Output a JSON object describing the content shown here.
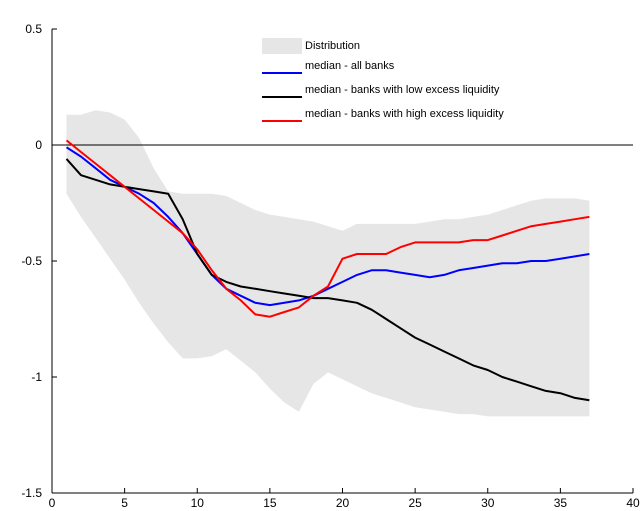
{
  "chart_data": {
    "type": "line",
    "title": "",
    "xlabel": "",
    "ylabel": "",
    "xlim": [
      0,
      40
    ],
    "ylim": [
      -1.5,
      0.5
    ],
    "xticks": [
      0,
      5,
      10,
      15,
      20,
      25,
      30,
      35,
      40
    ],
    "yticks": [
      0.5,
      0,
      -0.5,
      -1,
      -1.5
    ],
    "xtick_labels": [
      "0",
      "5",
      "10",
      "15",
      "20",
      "25",
      "30",
      "35",
      "40"
    ],
    "ytick_labels": [
      "0.5",
      "0",
      "-0.5",
      "-1",
      "-1.5"
    ],
    "grid": false,
    "legend_position": "top-right",
    "reference_line": 0,
    "distribution_band": {
      "name": "Distribution",
      "color": "#e6e6e6",
      "x": [
        1,
        2,
        3,
        4,
        5,
        6,
        7,
        8,
        9,
        10,
        11,
        12,
        13,
        14,
        15,
        16,
        17,
        18,
        19,
        20,
        21,
        22,
        23,
        24,
        25,
        26,
        27,
        28,
        29,
        30,
        31,
        32,
        33,
        34,
        35,
        36,
        37
      ],
      "upper": [
        0.13,
        0.13,
        0.15,
        0.14,
        0.11,
        0.03,
        -0.1,
        -0.2,
        -0.21,
        -0.21,
        -0.21,
        -0.22,
        -0.25,
        -0.28,
        -0.3,
        -0.31,
        -0.32,
        -0.33,
        -0.35,
        -0.37,
        -0.34,
        -0.34,
        -0.34,
        -0.34,
        -0.34,
        -0.33,
        -0.32,
        -0.32,
        -0.31,
        -0.3,
        -0.28,
        -0.26,
        -0.24,
        -0.23,
        -0.23,
        -0.23,
        -0.24
      ],
      "lower": [
        -0.21,
        -0.31,
        -0.4,
        -0.49,
        -0.58,
        -0.68,
        -0.77,
        -0.85,
        -0.92,
        -0.92,
        -0.91,
        -0.88,
        -0.93,
        -0.98,
        -1.05,
        -1.11,
        -1.15,
        -1.03,
        -0.98,
        -1.01,
        -1.04,
        -1.07,
        -1.09,
        -1.11,
        -1.13,
        -1.14,
        -1.15,
        -1.16,
        -1.16,
        -1.17,
        -1.17,
        -1.17,
        -1.17,
        -1.17,
        -1.17,
        -1.17,
        -1.17
      ]
    },
    "series": [
      {
        "name": "median - all banks",
        "color": "#0000ff",
        "x": [
          1,
          2,
          3,
          4,
          5,
          6,
          7,
          8,
          9,
          10,
          11,
          12,
          13,
          14,
          15,
          16,
          17,
          18,
          19,
          20,
          21,
          22,
          23,
          24,
          25,
          26,
          27,
          28,
          29,
          30,
          31,
          32,
          33,
          34,
          35,
          36,
          37
        ],
        "values": [
          -0.01,
          -0.05,
          -0.1,
          -0.15,
          -0.18,
          -0.21,
          -0.25,
          -0.31,
          -0.38,
          -0.47,
          -0.56,
          -0.62,
          -0.65,
          -0.68,
          -0.69,
          -0.68,
          -0.67,
          -0.65,
          -0.62,
          -0.59,
          -0.56,
          -0.54,
          -0.54,
          -0.55,
          -0.56,
          -0.57,
          -0.56,
          -0.54,
          -0.53,
          -0.52,
          -0.51,
          -0.51,
          -0.5,
          -0.5,
          -0.49,
          -0.48,
          -0.47
        ]
      },
      {
        "name": "median - banks with low excess liquidity",
        "color": "#000000",
        "x": [
          1,
          2,
          3,
          4,
          5,
          6,
          7,
          8,
          9,
          10,
          11,
          12,
          13,
          14,
          15,
          16,
          17,
          18,
          19,
          20,
          21,
          22,
          23,
          24,
          25,
          26,
          27,
          28,
          29,
          30,
          31,
          32,
          33,
          34,
          35,
          36,
          37
        ],
        "values": [
          -0.06,
          -0.13,
          -0.15,
          -0.17,
          -0.18,
          -0.19,
          -0.2,
          -0.21,
          -0.32,
          -0.47,
          -0.56,
          -0.59,
          -0.61,
          -0.62,
          -0.63,
          -0.64,
          -0.65,
          -0.66,
          -0.66,
          -0.67,
          -0.68,
          -0.71,
          -0.75,
          -0.79,
          -0.83,
          -0.86,
          -0.89,
          -0.92,
          -0.95,
          -0.97,
          -1.0,
          -1.02,
          -1.04,
          -1.06,
          -1.07,
          -1.09,
          -1.1
        ]
      },
      {
        "name": "median - banks with high excess liquidity",
        "color": "#ff0000",
        "x": [
          1,
          2,
          3,
          4,
          5,
          6,
          7,
          8,
          9,
          10,
          11,
          12,
          13,
          14,
          15,
          16,
          17,
          18,
          19,
          20,
          21,
          22,
          23,
          24,
          25,
          26,
          27,
          28,
          29,
          30,
          31,
          32,
          33,
          34,
          35,
          36,
          37
        ],
        "values": [
          0.02,
          -0.03,
          -0.08,
          -0.13,
          -0.18,
          -0.23,
          -0.28,
          -0.33,
          -0.38,
          -0.45,
          -0.54,
          -0.62,
          -0.67,
          -0.73,
          -0.74,
          -0.72,
          -0.7,
          -0.65,
          -0.61,
          -0.49,
          -0.47,
          -0.47,
          -0.47,
          -0.44,
          -0.42,
          -0.42,
          -0.42,
          -0.42,
          -0.41,
          -0.41,
          -0.39,
          -0.37,
          -0.35,
          -0.34,
          -0.33,
          -0.32,
          -0.31
        ]
      }
    ]
  }
}
